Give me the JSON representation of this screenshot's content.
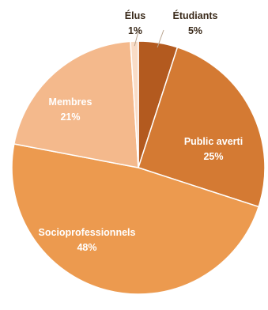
{
  "chart_data": {
    "type": "pie",
    "start_angle_deg": -90,
    "direction": "clockwise",
    "slices": [
      {
        "label": "Étudiants",
        "value_label": "5%",
        "value": 5,
        "color": "#b35a1f",
        "text_color": "#3a2a1a",
        "label_outside": true
      },
      {
        "label": "Public averti",
        "value_label": "25%",
        "value": 25,
        "color": "#d47a33",
        "text_color": "#ffffff",
        "label_outside": false
      },
      {
        "label": "Socioprofessionnels",
        "value_label": "48%",
        "value": 48,
        "color": "#ec9a4f",
        "text_color": "#ffffff",
        "label_outside": false
      },
      {
        "label": "Membres",
        "value_label": "21%",
        "value": 21,
        "color": "#f4b98c",
        "text_color": "#ffffff",
        "label_outside": false
      },
      {
        "label": "Élus",
        "value_label": "1%",
        "value": 1,
        "color": "#f9dcc6",
        "text_color": "#3a2a1a",
        "label_outside": true
      }
    ]
  }
}
